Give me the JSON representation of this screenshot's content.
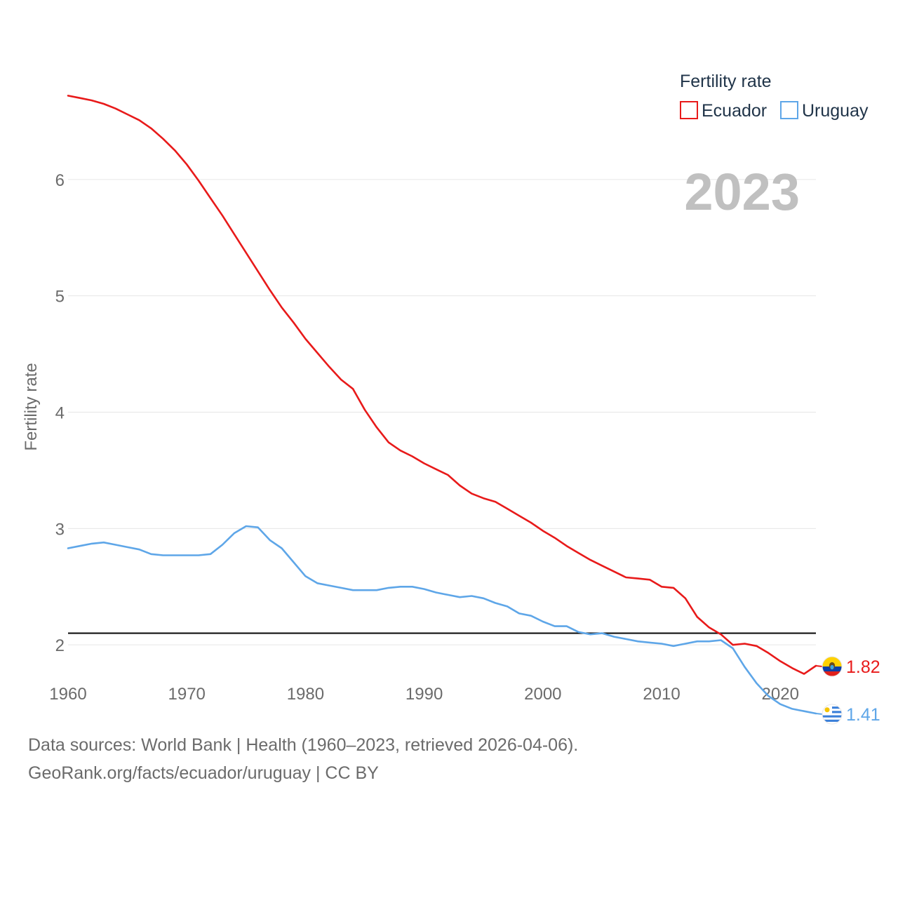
{
  "chart_data": {
    "type": "line",
    "title": "",
    "xlabel": "",
    "ylabel": "Fertility rate",
    "year_label": "2023",
    "legend_title": "Fertility rate",
    "legend_position": "top-right",
    "xlim": [
      1960,
      2023
    ],
    "ylim": [
      1.0,
      7.0
    ],
    "x_ticks": [
      1960,
      1970,
      1980,
      1990,
      2000,
      2010,
      2020
    ],
    "y_ticks": [
      2,
      3,
      4,
      5,
      6
    ],
    "grid": true,
    "reference_line": {
      "y": 2.1,
      "color": "#111111"
    },
    "x": [
      1960,
      1961,
      1962,
      1963,
      1964,
      1965,
      1966,
      1967,
      1968,
      1969,
      1970,
      1971,
      1972,
      1973,
      1974,
      1975,
      1976,
      1977,
      1978,
      1979,
      1980,
      1981,
      1982,
      1983,
      1984,
      1985,
      1986,
      1987,
      1988,
      1989,
      1990,
      1991,
      1992,
      1993,
      1994,
      1995,
      1996,
      1997,
      1998,
      1999,
      2000,
      2001,
      2002,
      2003,
      2004,
      2005,
      2006,
      2007,
      2008,
      2009,
      2010,
      2011,
      2012,
      2013,
      2014,
      2015,
      2016,
      2017,
      2018,
      2019,
      2020,
      2021,
      2022,
      2023
    ],
    "series": [
      {
        "name": "Ecuador",
        "color": "#e81a1a",
        "end_label": "1.82",
        "values": [
          6.72,
          6.7,
          6.68,
          6.65,
          6.61,
          6.56,
          6.51,
          6.44,
          6.35,
          6.25,
          6.13,
          5.99,
          5.84,
          5.69,
          5.53,
          5.37,
          5.21,
          5.05,
          4.9,
          4.77,
          4.63,
          4.51,
          4.39,
          4.28,
          4.2,
          4.02,
          3.87,
          3.74,
          3.67,
          3.62,
          3.56,
          3.51,
          3.46,
          3.37,
          3.3,
          3.26,
          3.23,
          3.17,
          3.11,
          3.05,
          2.98,
          2.92,
          2.85,
          2.79,
          2.73,
          2.68,
          2.63,
          2.58,
          2.57,
          2.56,
          2.5,
          2.49,
          2.4,
          2.24,
          2.15,
          2.09,
          2.0,
          2.01,
          1.99,
          1.93,
          1.86,
          1.8,
          1.75,
          1.82
        ]
      },
      {
        "name": "Uruguay",
        "color": "#5ea6e8",
        "end_label": "1.41",
        "values": [
          2.83,
          2.85,
          2.87,
          2.88,
          2.86,
          2.84,
          2.82,
          2.78,
          2.77,
          2.77,
          2.77,
          2.77,
          2.78,
          2.86,
          2.96,
          3.02,
          3.01,
          2.9,
          2.83,
          2.71,
          2.59,
          2.53,
          2.51,
          2.49,
          2.47,
          2.47,
          2.47,
          2.49,
          2.5,
          2.5,
          2.48,
          2.45,
          2.43,
          2.41,
          2.42,
          2.4,
          2.36,
          2.33,
          2.27,
          2.25,
          2.2,
          2.16,
          2.16,
          2.11,
          2.09,
          2.1,
          2.07,
          2.05,
          2.03,
          2.02,
          2.01,
          1.99,
          2.01,
          2.03,
          2.03,
          2.04,
          1.97,
          1.81,
          1.67,
          1.56,
          1.49,
          1.45,
          1.43,
          1.41
        ]
      }
    ]
  },
  "footer": {
    "line1": "Data sources: World Bank | Health (1960–2023, retrieved 2026-04-06).",
    "line2": "GeoRank.org/facts/ecuador/uruguay | CC BY"
  },
  "colors": {
    "axis_text": "#6b6b6b",
    "legend_text": "#1f3348",
    "grid": "#e6e6e6",
    "year_label": "#c0c0c0"
  }
}
